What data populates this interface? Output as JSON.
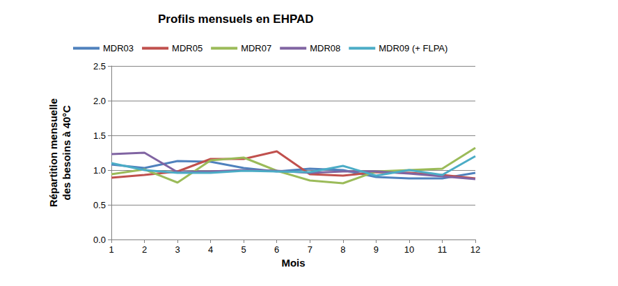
{
  "chart_data": {
    "type": "line",
    "title": "Profils mensuels en EHPAD",
    "x_label": "Mois",
    "y_label": "Répartition mensuelle\ndes besoins à 40°C",
    "categories": [
      "1",
      "2",
      "3",
      "4",
      "5",
      "6",
      "7",
      "8",
      "9",
      "10",
      "11",
      "12"
    ],
    "series": [
      {
        "name": "MDR03",
        "color": "#4F81BD",
        "values": [
          1.08,
          1.03,
          1.13,
          1.12,
          1.03,
          0.98,
          1.02,
          1.0,
          0.9,
          0.88,
          0.88,
          0.96
        ]
      },
      {
        "name": "MDR05",
        "color": "#C0504D",
        "values": [
          0.89,
          0.93,
          0.98,
          1.16,
          1.16,
          1.27,
          0.94,
          0.92,
          0.97,
          0.96,
          0.93,
          0.88
        ]
      },
      {
        "name": "MDR07",
        "color": "#9BBB59",
        "values": [
          0.94,
          1.01,
          0.82,
          1.14,
          1.18,
          0.99,
          0.85,
          0.81,
          0.98,
          1.0,
          1.02,
          1.32
        ]
      },
      {
        "name": "MDR08",
        "color": "#8064A2",
        "values": [
          1.23,
          1.25,
          0.97,
          0.98,
          1.0,
          0.99,
          0.96,
          0.98,
          0.98,
          0.95,
          0.91,
          0.87
        ]
      },
      {
        "name": "MDR09 (+ FLPA)",
        "color": "#4BACC6",
        "values": [
          1.1,
          1.0,
          0.96,
          0.96,
          0.99,
          0.98,
          0.97,
          1.06,
          0.92,
          1.0,
          0.93,
          1.2
        ]
      }
    ],
    "ylim": [
      0,
      2.5
    ],
    "yticks": [
      {
        "value": 0,
        "label": "0.0"
      },
      0.5,
      {
        "value": 1,
        "label": "1.0"
      },
      1.5,
      {
        "value": 2,
        "label": "2.0"
      },
      2.5
    ],
    "grid": true,
    "legend": "top"
  }
}
